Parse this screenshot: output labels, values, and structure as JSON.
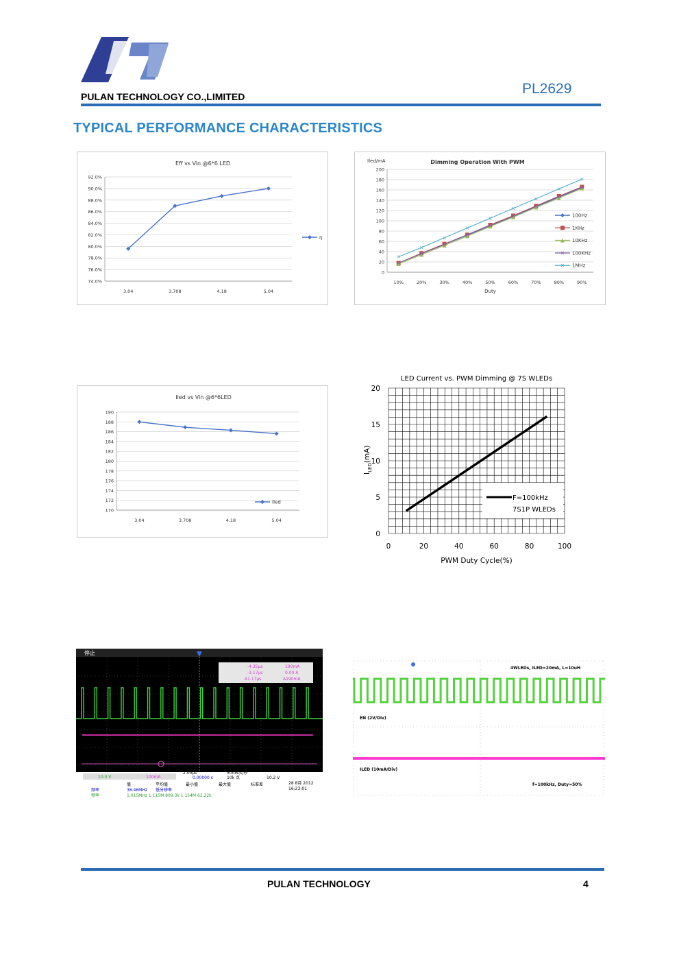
{
  "header": {
    "company": "PULAN TECHNOLOGY CO.,LIMITED",
    "part_number": "PL2629",
    "logo": "pulan-p-logo"
  },
  "section_title": "TYPICAL PERFORMANCE CHARACTERISTICS",
  "chart_data": [
    {
      "type": "line",
      "title": "Eff vs Vin @6*6 LED",
      "categories": [
        "3.04",
        "3.708",
        "4.18",
        "5.04"
      ],
      "series": [
        {
          "name": "η",
          "values": [
            79.6,
            87.0,
            88.7,
            90.0
          ],
          "color": "#4472c4"
        }
      ],
      "yticks": [
        "92.0%",
        "90.0%",
        "88.0%",
        "86.0%",
        "84.0%",
        "82.0%",
        "80.0%",
        "78.0%",
        "76.0%",
        "74.0%"
      ],
      "ylim": [
        74,
        92
      ],
      "grid": true,
      "legend": "right"
    },
    {
      "type": "line",
      "title": "Dimming Operation With PWM",
      "ylabel": "Iled/mA",
      "xlabel": "Duty",
      "categories": [
        "10%",
        "20%",
        "30%",
        "40%",
        "50%",
        "60%",
        "70%",
        "80%",
        "90%"
      ],
      "yticks": [
        "200",
        "180",
        "160",
        "140",
        "120",
        "100",
        "80",
        "60",
        "40",
        "20",
        "0"
      ],
      "ylim": [
        0,
        200
      ],
      "series": [
        {
          "name": "100Hz",
          "values": [
            18,
            36,
            54,
            72,
            90,
            108,
            127,
            146,
            164
          ],
          "color": "#4472c4"
        },
        {
          "name": "1KHz",
          "values": [
            18,
            37,
            55,
            73,
            92,
            110,
            129,
            148,
            166
          ],
          "color": "#c0504d"
        },
        {
          "name": "10KHz",
          "values": [
            16,
            34,
            52,
            70,
            89,
            107,
            126,
            144,
            163
          ],
          "color": "#9bbb59"
        },
        {
          "name": "100KHz",
          "values": [
            18,
            36,
            54,
            73,
            91,
            109,
            128,
            147,
            165
          ],
          "color": "#8064a2"
        },
        {
          "name": "1MHz",
          "values": [
            30,
            48,
            67,
            86,
            105,
            124,
            143,
            162,
            181
          ],
          "color": "#4bacc6"
        }
      ],
      "grid": true,
      "legend": "right"
    },
    {
      "type": "line",
      "title": "Iled vs Vin @6*6LED",
      "categories": [
        "3.04",
        "3.708",
        "4.18",
        "5.04"
      ],
      "series": [
        {
          "name": "Iled",
          "values": [
            188.0,
            186.9,
            186.3,
            185.6
          ],
          "color": "#4472c4"
        }
      ],
      "yticks": [
        "190",
        "188",
        "186",
        "184",
        "182",
        "180",
        "178",
        "176",
        "174",
        "172",
        "170"
      ],
      "ylim": [
        170,
        190
      ],
      "grid": true,
      "legend": "bottom-right"
    },
    {
      "type": "line",
      "title": "LED Current vs. PWM Dimming @ 7S WLEDs",
      "xlabel": "PWM Duty Cycle(%)",
      "ylabel_main": "I",
      "ylabel_sub": "LED",
      "ylabel_unit": "(mA)",
      "xticks": [
        "0",
        "20",
        "40",
        "60",
        "80",
        "100"
      ],
      "yticks": [
        "20",
        "15",
        "10",
        "5",
        "0"
      ],
      "xlim": [
        0,
        100
      ],
      "ylim": [
        0,
        20
      ],
      "series": [
        {
          "name": "F=100kHz",
          "x": [
            10,
            90
          ],
          "y": [
            3.1,
            16.1
          ],
          "color": "#000000"
        }
      ],
      "legend_line2": "7S1P WLEDs",
      "grid": true,
      "legend": "bottom-right"
    }
  ],
  "scope1": {
    "status": "停止",
    "meas_line1": "-4.35μs",
    "meas_line1b": "190mA",
    "meas_line2": "-3.17μs",
    "meas_line2b": "0.00 A",
    "meas_line3": "Δ1.17μs",
    "meas_line3b": "Δ190mA",
    "ch1": "10.0 V",
    "ch3": "100mA",
    "timebase": "2.00μs",
    "delay": "0.00000 s",
    "sample_rate": "500M次/秒",
    "points": "10k 点",
    "trigger": "10.2 V",
    "hdr_val": "值",
    "hdr_mean": "平均值",
    "hdr_min": "最小值",
    "hdr_max": "最大值",
    "hdr_std": "标准差",
    "row1_label": "频率",
    "row1_val": "38.46MHz",
    "row1_note": "低分辨率",
    "row2_label": "频率",
    "row2_vals": "1.015MHz  1.115M  809.3k  1.154M  62.22k",
    "date": "28 8月 2012",
    "time": "16:23:01"
  },
  "scope2": {
    "title": "4WLEDs, ILED=20mA, L=10uH",
    "en_label": "EN (2V/Div)",
    "iled_label": "ILED (10mA/Div)",
    "freq_label": "f=100kHz, Duty=50%"
  },
  "footer": {
    "name": "PULAN TECHNOLOGY",
    "page": "4"
  }
}
